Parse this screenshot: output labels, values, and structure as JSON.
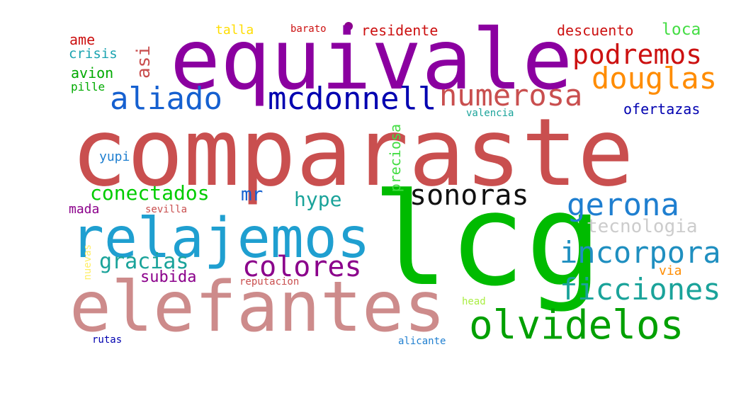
{
  "words": [
    {
      "text": "comparaste",
      "color": "#c94f4f"
    },
    {
      "text": "lcg",
      "color": "#00bb00"
    },
    {
      "text": "equivale",
      "color": "#8b00a0"
    },
    {
      "text": "elefantes",
      "color": "#cd8b8b"
    },
    {
      "text": "relajemos",
      "color": "#1f9fd0"
    },
    {
      "text": "olvidelos",
      "color": "#00a000"
    },
    {
      "text": "podremos",
      "color": "#cc1111"
    },
    {
      "text": "douglas",
      "color": "#ff8c00"
    },
    {
      "text": "mcdonnell",
      "color": "#0000b0"
    },
    {
      "text": "numerosa",
      "color": "#c94f4f"
    },
    {
      "text": "aliado",
      "color": "#1560d0"
    },
    {
      "text": "sonoras",
      "color": "#111111"
    },
    {
      "text": "gerona",
      "color": "#1f7fd0"
    },
    {
      "text": "incorpora",
      "color": "#1f8fc0"
    },
    {
      "text": "ficciones",
      "color": "#1aa39a"
    },
    {
      "text": "colores",
      "color": "#8b008b"
    },
    {
      "text": "tecnologia",
      "color": "#cccccc"
    },
    {
      "text": "conectados",
      "color": "#00cc00"
    },
    {
      "text": "gracias",
      "color": "#1aa39a"
    },
    {
      "text": "hype",
      "color": "#1aa39a"
    },
    {
      "text": "mr",
      "color": "#1560d0"
    },
    {
      "text": "subida",
      "color": "#8b008b"
    },
    {
      "text": "ofertazas",
      "color": "#0000b0"
    },
    {
      "text": "descuento",
      "color": "#cc1111"
    },
    {
      "text": "loca",
      "color": "#44dd44"
    },
    {
      "text": "residente",
      "color": "#cc1111"
    },
    {
      "text": "talla",
      "color": "#ffdd00"
    },
    {
      "text": "barato",
      "color": "#cc1111"
    },
    {
      "text": "ame",
      "color": "#cc1111"
    },
    {
      "text": "crisis",
      "color": "#1aa3b0"
    },
    {
      "text": "avion",
      "color": "#00aa00"
    },
    {
      "text": "pille",
      "color": "#00aa00"
    },
    {
      "text": "asi",
      "color": "#c94f4f"
    },
    {
      "text": "yupi",
      "color": "#1f7fd0"
    },
    {
      "text": "preciosa",
      "color": "#44dd44"
    },
    {
      "text": "valencia",
      "color": "#1aa39a"
    },
    {
      "text": "mada",
      "color": "#8b008b"
    },
    {
      "text": "sevilla",
      "color": "#c94f4f"
    },
    {
      "text": "nuevas",
      "color": "#ffee66"
    },
    {
      "text": "reputacion",
      "color": "#c94f4f"
    },
    {
      "text": "via",
      "color": "#ff8c00"
    },
    {
      "text": "head",
      "color": "#aaee44"
    },
    {
      "text": "rutas",
      "color": "#0000b0"
    },
    {
      "text": "alicante",
      "color": "#1f7fd0"
    }
  ]
}
